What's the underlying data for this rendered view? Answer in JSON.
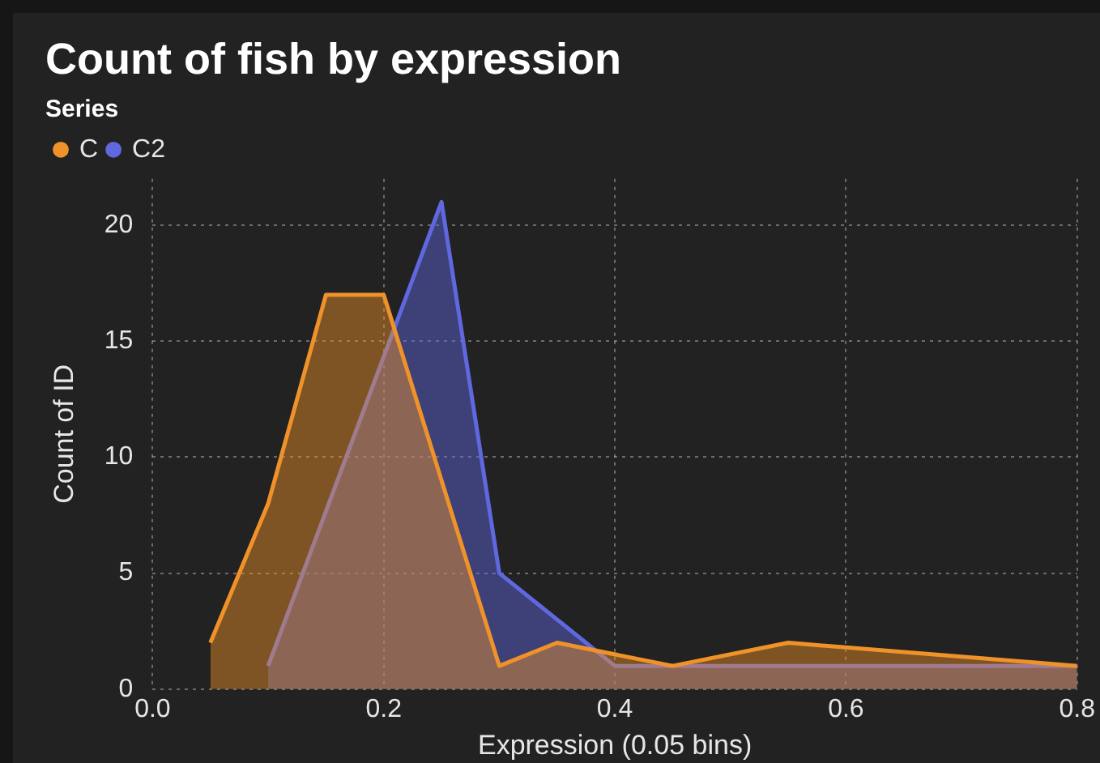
{
  "chart_data": {
    "type": "area",
    "title": "Count of fish by expression",
    "xlabel": "Expression (0.05 bins)",
    "ylabel": "Count of ID",
    "legend_title": "Series",
    "legend": "top left",
    "grid": true,
    "marker": "none",
    "line_style": "solid",
    "xlim": [
      0,
      0.8
    ],
    "xticks": [
      {
        "value": 0,
        "label": "0.0"
      },
      0.2,
      0.4,
      0.6,
      0.8
    ],
    "ylim": [
      0,
      22
    ],
    "yticks": [
      0,
      5,
      10,
      15,
      20
    ],
    "series": [
      {
        "name": "C",
        "color": "#f0922a",
        "x": [
          0.05,
          0.1,
          0.15,
          0.2,
          0.3,
          0.35,
          0.45,
          0.55,
          0.8
        ],
        "values": [
          2,
          8,
          17,
          17,
          1,
          2,
          1,
          2,
          1
        ]
      },
      {
        "name": "C2",
        "color": "#6068e0",
        "x": [
          0.1,
          0.25,
          0.3,
          0.4,
          0.45,
          0.8
        ],
        "values": [
          1,
          21,
          5,
          1,
          1,
          1
        ]
      }
    ]
  }
}
